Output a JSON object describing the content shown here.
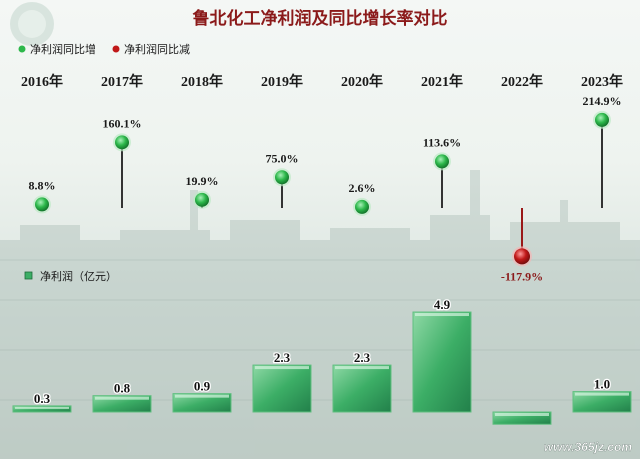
{
  "title": "鲁北化工净利润及同比增长率对比",
  "legend_growth": {
    "up_label": "净利润同比增",
    "down_label": "净利润同比减"
  },
  "legend_bar": {
    "label": "净利润（亿元）"
  },
  "watermark": "www.365jz.com",
  "colors": {
    "title": "#8b1a1a",
    "up": "#2db84b",
    "down": "#c01818",
    "bar": "#3cae66",
    "stem": "#333333",
    "year": "#1a1a1a"
  },
  "chart_data": [
    {
      "type": "line",
      "subtype": "lollipop",
      "categories": [
        "2016年",
        "2017年",
        "2018年",
        "2019年",
        "2020年",
        "2021年",
        "2022年",
        "2023年"
      ],
      "values": [
        8.8,
        160.1,
        19.9,
        75.0,
        2.6,
        113.6,
        -117.9,
        214.9
      ],
      "labels": [
        "8.8%",
        "160.1%",
        "19.9%",
        "75.0%",
        "2.6%",
        "113.6%",
        "-117.9%",
        "214.9%"
      ],
      "unit": "%"
    },
    {
      "type": "bar",
      "categories": [
        "2016年",
        "2017年",
        "2018年",
        "2019年",
        "2020年",
        "2021年",
        "2022年",
        "2023年"
      ],
      "values": [
        0.3,
        0.8,
        0.9,
        2.3,
        2.3,
        4.9,
        -0.6,
        1.0
      ],
      "labels": [
        "0.3",
        "0.8",
        "0.9",
        "2.3",
        "2.3",
        "4.9",
        "",
        "1.0"
      ]
    }
  ]
}
